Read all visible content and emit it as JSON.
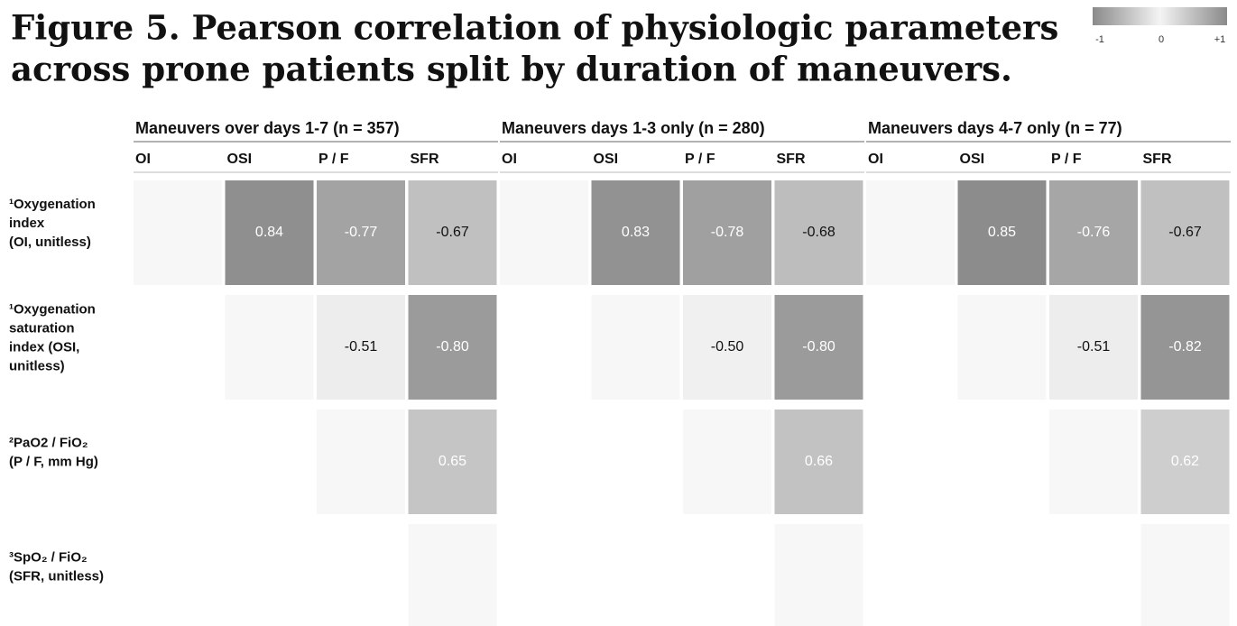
{
  "title_lines": [
    "Figure 5. Pearson correlation of physiologic parameters",
    "across prone patients split by duration of maneuvers."
  ],
  "legend": {
    "labels": [
      "-1",
      "0",
      "+1"
    ]
  },
  "columns": [
    "OI",
    "OSI",
    "P / F",
    "SFR"
  ],
  "rows": [
    {
      "lines": [
        "¹Oxygenation",
        "index",
        "(OI, unitless)"
      ]
    },
    {
      "lines": [
        "¹Oxygenation",
        "saturation",
        "index (OSI,",
        "unitless)"
      ]
    },
    {
      "lines": [
        "²PaO2 / FiO₂",
        "(P / F, mm Hg)"
      ]
    },
    {
      "lines": [
        "³SpO₂ / FiO₂",
        "(SFR, unitless)"
      ]
    }
  ],
  "groups": [
    {
      "header": "Maneuvers over days 1-7 (n = 357)",
      "values": [
        [
          null,
          0.84,
          -0.77,
          -0.67
        ],
        [
          null,
          null,
          -0.51,
          -0.8
        ],
        [
          null,
          null,
          null,
          0.65
        ],
        [
          null,
          null,
          null,
          null
        ]
      ],
      "value_labels": [
        [
          null,
          "0.84",
          "-0.77",
          "-0.67"
        ],
        [
          null,
          null,
          "-0.51",
          "-0.80"
        ],
        [
          null,
          null,
          null,
          "0.65"
        ],
        [
          null,
          null,
          null,
          null
        ]
      ]
    },
    {
      "header": "Maneuvers days 1-3 only (n = 280)",
      "values": [
        [
          null,
          0.83,
          -0.78,
          -0.68
        ],
        [
          null,
          null,
          -0.5,
          -0.8
        ],
        [
          null,
          null,
          null,
          0.66
        ],
        [
          null,
          null,
          null,
          null
        ]
      ],
      "value_labels": [
        [
          null,
          "0.83",
          "-0.78",
          "-0.68"
        ],
        [
          null,
          null,
          "-0.50",
          "-0.80"
        ],
        [
          null,
          null,
          null,
          "0.66"
        ],
        [
          null,
          null,
          null,
          null
        ]
      ]
    },
    {
      "header": "Maneuvers days 4-7 only (n = 77)",
      "values": [
        [
          null,
          0.85,
          -0.76,
          -0.67
        ],
        [
          null,
          null,
          -0.51,
          -0.82
        ],
        [
          null,
          null,
          null,
          0.62
        ],
        [
          null,
          null,
          null,
          null
        ]
      ],
      "value_labels": [
        [
          null,
          "0.85",
          "-0.76",
          "-0.67"
        ],
        [
          null,
          null,
          "-0.51",
          "-0.82"
        ],
        [
          null,
          null,
          null,
          "0.62"
        ],
        [
          null,
          null,
          null,
          null
        ]
      ]
    }
  ]
}
